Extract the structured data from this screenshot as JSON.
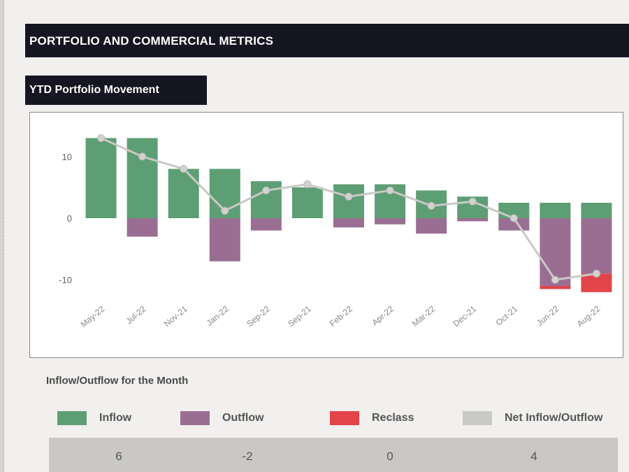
{
  "header": {
    "title": "PORTFOLIO AND COMMERCIAL METRICS"
  },
  "subheader": {
    "title": "YTD Portfolio Movement"
  },
  "colors": {
    "inflow": "#5e9e74",
    "outflow": "#9a6e93",
    "reclass": "#e2444a",
    "net": "#c9c9c6",
    "header_bg": "#161622"
  },
  "chart_data": {
    "type": "bar",
    "stacked": true,
    "categories": [
      "May-22",
      "Jul-22",
      "Nov-21",
      "Jan-22",
      "Sep-22",
      "Sep-21",
      "Feb-22",
      "Apr-22",
      "Mar-22",
      "Dec-21",
      "Oct-21",
      "Jun-22",
      "Aug-22"
    ],
    "series": [
      {
        "name": "Inflow",
        "values": [
          13,
          13,
          8,
          8,
          6,
          5,
          5.5,
          5.5,
          4.5,
          3.5,
          2.5,
          2.5,
          2.5
        ]
      },
      {
        "name": "Outflow",
        "values": [
          0,
          -3,
          0,
          -7,
          -2,
          0,
          -1.5,
          -1,
          -2.5,
          -0.5,
          -2,
          -11,
          -9
        ]
      },
      {
        "name": "Reclass",
        "values": [
          0,
          0,
          0,
          0,
          0,
          0,
          0,
          0,
          0,
          0,
          0,
          -0.5,
          -3
        ]
      },
      {
        "name": "Net Inflow/Outflow",
        "type": "line",
        "values": [
          13,
          10,
          8,
          1.2,
          4.5,
          5.5,
          3.5,
          4.5,
          2,
          2.7,
          0,
          -10,
          -9
        ]
      }
    ],
    "yticks": [
      10,
      0,
      -10
    ],
    "ylim": [
      -13.5,
      16
    ],
    "title": "",
    "xlabel": "",
    "ylabel": "",
    "grid": false,
    "legend": "bottom"
  },
  "caption": "Inflow/Outflow for the Month",
  "legend": [
    {
      "label": "Inflow"
    },
    {
      "label": "Outflow"
    },
    {
      "label": "Reclass"
    },
    {
      "label": "Net Inflow/Outflow"
    }
  ],
  "month_values": [
    "6",
    "-2",
    "0",
    "4"
  ]
}
